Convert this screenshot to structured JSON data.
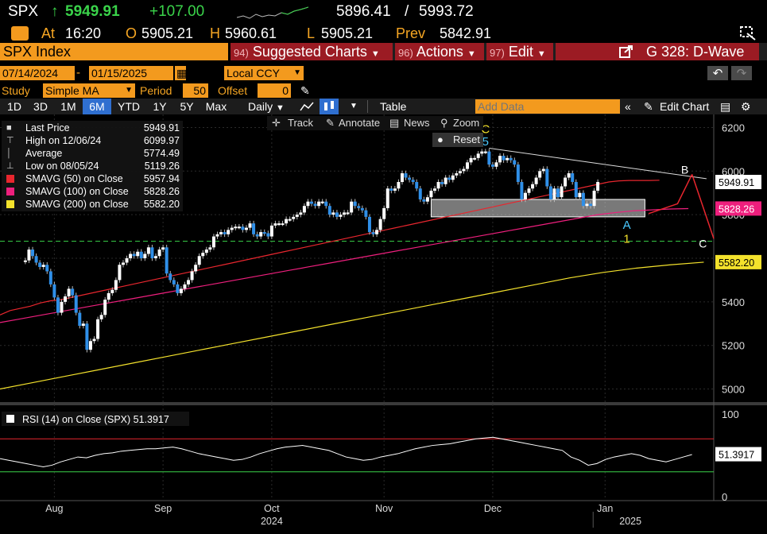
{
  "header": {
    "ticker": "SPX",
    "last": "5949.91",
    "change": "+107.00",
    "range_low": "5896.41",
    "range_sep": "/",
    "range_high": "5993.72",
    "at_label": "At",
    "time": "16:20",
    "open_label": "O",
    "open": "5905.21",
    "high_label": "H",
    "high": "5960.61",
    "low_label": "L",
    "low": "5905.21",
    "prev_label": "Prev",
    "prev": "5842.91"
  },
  "menubar": {
    "index_name": "SPX Index",
    "suggested_num": "94)",
    "suggested_label": "Suggested Charts",
    "actions_num": "96)",
    "actions_label": "Actions",
    "edit_num": "97)",
    "edit_label": "Edit",
    "chart_id": "G 328: D-Wave"
  },
  "dates": {
    "start": "07/14/2024",
    "end": "01/15/2025",
    "currency": "Local CCY"
  },
  "study": {
    "study_label": "Study",
    "study_value": "Simple MA",
    "period_label": "Period",
    "period_value": "50",
    "offset_label": "Offset",
    "offset_value": "0"
  },
  "toolbar": {
    "periods": [
      "1D",
      "3D",
      "1M",
      "6M",
      "YTD",
      "1Y",
      "5Y",
      "Max"
    ],
    "selected_period": "6M",
    "frequency": "Daily",
    "table_label": "Table",
    "add_data_placeholder": "Add Data",
    "edit_chart_label": "Edit Chart"
  },
  "chart_tools": {
    "track": "Track",
    "annotate": "Annotate",
    "news": "News",
    "zoom": "Zoom",
    "reset": "Reset"
  },
  "legend": [
    {
      "label": "Last Price",
      "value": "5949.91",
      "color": "#ffffff"
    },
    {
      "label": "High on 12/06/24",
      "value": "6099.97",
      "color": "#ffffff"
    },
    {
      "label": "Average",
      "value": "5774.49",
      "color": "#ffffff"
    },
    {
      "label": "Low on 08/05/24",
      "value": "5119.26",
      "color": "#ffffff"
    },
    {
      "label": "SMAVG (50)  on Close",
      "value": "5957.94",
      "color": "#e8262e"
    },
    {
      "label": "SMAVG (100)  on Close",
      "value": "5828.26",
      "color": "#ee1f7d"
    },
    {
      "label": "SMAVG (200)  on Close",
      "value": "5582.20",
      "color": "#f4e22c"
    }
  ],
  "colors": {
    "up": "#ffffff",
    "down": "#2f8fe8",
    "sma50": "#e8262e",
    "sma100": "#ee1f7d",
    "sma200": "#f4e22c",
    "accent": "#f39a1e",
    "rsi_line": "#ffffff"
  },
  "chart_data": {
    "type": "candlestick",
    "ylim": [
      4940,
      6260
    ],
    "yticks": [
      5000,
      5200,
      5400,
      5600,
      5800,
      6000,
      6200
    ],
    "xlabels": [
      {
        "label": "Aug",
        "t": 8
      },
      {
        "label": "Sep",
        "t": 38
      },
      {
        "label": "Oct",
        "t": 68
      },
      {
        "label": "Nov",
        "t": 99
      },
      {
        "label": "Dec",
        "t": 129
      },
      {
        "label": "Jan",
        "t": 160
      }
    ],
    "years": [
      {
        "label": "2024",
        "t": 68
      },
      {
        "label": "2025",
        "t": 167
      }
    ],
    "x_range": [
      -7,
      190
    ],
    "closes": [
      5590,
      5640,
      5610,
      5580,
      5560,
      5570,
      5540,
      5480,
      5420,
      5350,
      5400,
      5425,
      5460,
      5430,
      5350,
      5290,
      5300,
      5180,
      5220,
      5230,
      5320,
      5340,
      5410,
      5440,
      5455,
      5500,
      5570,
      5580,
      5600,
      5620,
      5610,
      5630,
      5600,
      5620,
      5650,
      5600,
      5610,
      5640,
      5650,
      5530,
      5500,
      5480,
      5440,
      5460,
      5480,
      5500,
      5540,
      5570,
      5610,
      5625,
      5640,
      5650,
      5700,
      5710,
      5720,
      5710,
      5730,
      5740,
      5745,
      5745,
      5730,
      5740,
      5760,
      5710,
      5700,
      5720,
      5715,
      5700,
      5750,
      5760,
      5760,
      5760,
      5780,
      5780,
      5790,
      5800,
      5810,
      5840,
      5860,
      5850,
      5840,
      5860,
      5860,
      5840,
      5800,
      5810,
      5790,
      5800,
      5810,
      5810,
      5860,
      5840,
      5830,
      5820,
      5790,
      5720,
      5710,
      5730,
      5780,
      5830,
      5920,
      5910,
      5920,
      5950,
      5990,
      5970,
      5960,
      5950,
      5920,
      5870,
      5860,
      5880,
      5910,
      5920,
      5950,
      5940,
      5970,
      5960,
      5980,
      5990,
      6000,
      6010,
      6040,
      6060,
      6060,
      6080,
      6090,
      6090,
      6030,
      6020,
      6040,
      6070,
      6050,
      6060,
      6050,
      6030,
      5950,
      5870,
      5900,
      5920,
      5940,
      5970,
      6000,
      6010,
      5930,
      5870,
      5920,
      5880,
      5930,
      5970,
      5990,
      5950,
      5880,
      5900,
      5840,
      5850,
      5840,
      5910,
      5950
    ],
    "sma50": [
      5340,
      5360,
      5370,
      5380,
      5395,
      5405,
      5410,
      5420,
      5430,
      5440,
      5450,
      5460,
      5470,
      5480,
      5490,
      5500,
      5510,
      5520,
      5530,
      5540,
      5550,
      5560,
      5570,
      5580,
      5590,
      5600,
      5610,
      5620,
      5630,
      5640,
      5650,
      5660,
      5670,
      5680,
      5690,
      5700,
      5710,
      5720,
      5730,
      5740,
      5750,
      5760,
      5770,
      5780,
      5790,
      5800,
      5810,
      5820,
      5830,
      5840,
      5850,
      5860,
      5870,
      5880,
      5890,
      5900,
      5910,
      5920,
      5930,
      5940,
      5950,
      5955,
      5957,
      5957,
      5957,
      5958
    ],
    "sma100": [
      5305,
      5320,
      5335,
      5350,
      5365,
      5380,
      5395,
      5410,
      5425,
      5440,
      5455,
      5470,
      5485,
      5500,
      5515,
      5530,
      5545,
      5560,
      5575,
      5590,
      5605,
      5620,
      5635,
      5650,
      5665,
      5680,
      5695,
      5710,
      5725,
      5740,
      5755,
      5770,
      5785,
      5800,
      5810,
      5818,
      5822,
      5826,
      5828
    ],
    "sma200": [
      5000,
      5030,
      5060,
      5090,
      5120,
      5150,
      5180,
      5210,
      5240,
      5270,
      5300,
      5330,
      5360,
      5390,
      5420,
      5450,
      5480,
      5510,
      5535,
      5555,
      5570,
      5582
    ],
    "rsi": [
      46,
      44,
      42,
      40,
      38,
      36,
      38,
      42,
      45,
      48,
      47,
      50,
      52,
      53,
      55,
      56,
      57,
      58,
      58,
      59,
      60,
      58,
      55,
      52,
      50,
      48,
      46,
      44,
      45,
      48,
      52,
      55,
      58,
      60,
      61,
      62,
      60,
      58,
      56,
      52,
      48,
      46,
      44,
      45,
      48,
      50,
      52,
      55,
      58,
      60,
      62,
      63,
      64,
      66,
      68,
      70,
      71,
      72,
      70,
      68,
      66,
      64,
      62,
      60,
      58,
      56,
      48,
      44,
      38,
      40,
      45,
      48,
      50,
      52,
      50,
      46,
      44,
      42,
      45,
      48,
      51
    ],
    "rsi_ylim": [
      -5,
      105
    ],
    "rsi_yticks": [
      0,
      50,
      100
    ],
    "rsi_overbought": 70,
    "rsi_oversold": 30,
    "rsi_label": "RSI (14)  on Close (SPX) 51.3917",
    "rsi_value_tag": "51.3917",
    "last_price_tag": "5949.91",
    "sma100_tag": "5828.26",
    "sma200_tag": "5582.20",
    "support_zone": [
      5790,
      5870
    ],
    "dashed_level": 5678,
    "annotations": {
      "wave_c_top": "C",
      "wave_5": "5",
      "wave_a": "A",
      "wave_1": "1",
      "wave_b": "B",
      "wave_c_bottom": "C"
    }
  }
}
